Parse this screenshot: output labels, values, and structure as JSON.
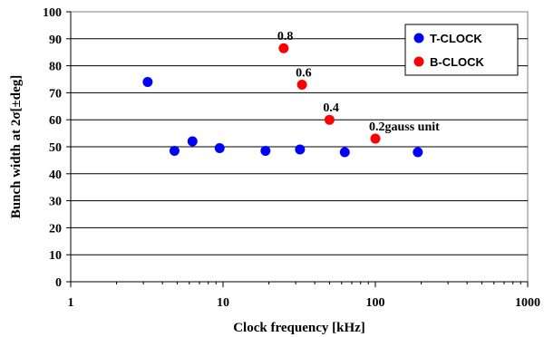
{
  "chart_data": {
    "type": "scatter",
    "xscale": "log",
    "xlim": [
      1,
      1000
    ],
    "ylim": [
      0,
      100
    ],
    "x_ticks": [
      "1",
      "10",
      "100",
      "1000"
    ],
    "y_ticks": [
      "0",
      "10",
      "20",
      "30",
      "40",
      "50",
      "60",
      "70",
      "80",
      "90",
      "100"
    ],
    "xlabel": "Clock frequency [kHz]",
    "ylabel": "Bunch width at 2σ[±deg]",
    "grid": "horizontal",
    "legend_position": "top-right",
    "series": [
      {
        "name": "T-CLOCK",
        "color": "#0000ff",
        "points": [
          {
            "x": 3.2,
            "y": 74
          },
          {
            "x": 4.8,
            "y": 48.5
          },
          {
            "x": 6.3,
            "y": 52
          },
          {
            "x": 9.5,
            "y": 49.5
          },
          {
            "x": 19,
            "y": 48.5
          },
          {
            "x": 32,
            "y": 49
          },
          {
            "x": 63,
            "y": 48
          },
          {
            "x": 190,
            "y": 48
          }
        ]
      },
      {
        "name": "B-CLOCK",
        "color": "#ff0000",
        "points": [
          {
            "x": 25,
            "y": 86.5
          },
          {
            "x": 33,
            "y": 73
          },
          {
            "x": 50,
            "y": 60
          },
          {
            "x": 100,
            "y": 53
          }
        ]
      }
    ],
    "annotations": [
      {
        "text": "0.8",
        "x": 25,
        "y": 86.5
      },
      {
        "text": "0.6",
        "x": 33,
        "y": 73
      },
      {
        "text": "0.4",
        "x": 50,
        "y": 60
      },
      {
        "text": "0.2gauss unit",
        "x": 100,
        "y": 53
      }
    ]
  }
}
